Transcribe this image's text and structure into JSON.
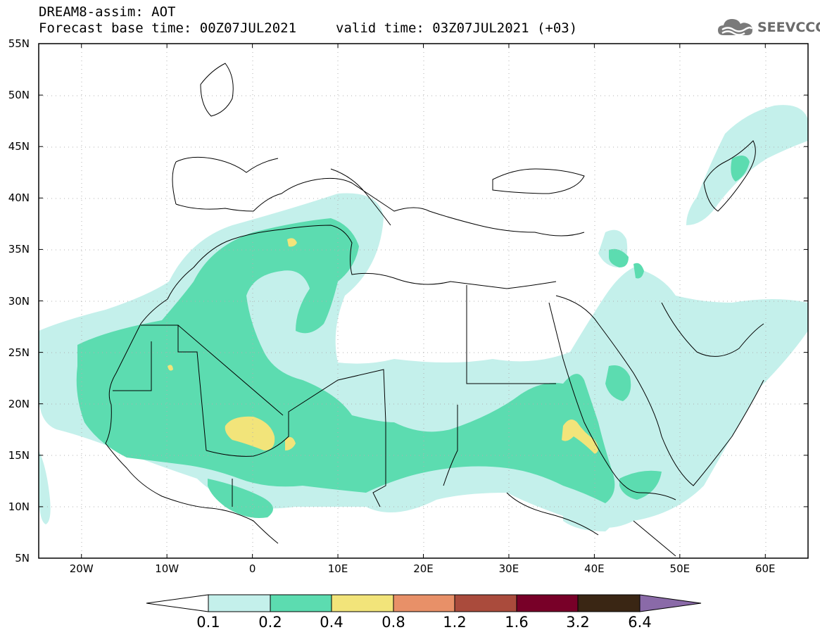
{
  "header": {
    "title": "DREAM8-assim: AOT",
    "base_time": "Forecast base time: 00Z07JUL2021",
    "valid_time": "valid time: 03Z07JUL2021 (+03)"
  },
  "logo": {
    "icon": "cloud-icon",
    "text": "SEEVCCC"
  },
  "map": {
    "lat_ticks": [
      {
        "lat": 55,
        "label": "55N"
      },
      {
        "lat": 50,
        "label": "50N"
      },
      {
        "lat": 45,
        "label": "45N"
      },
      {
        "lat": 40,
        "label": "40N"
      },
      {
        "lat": 35,
        "label": "35N"
      },
      {
        "lat": 30,
        "label": "30N"
      },
      {
        "lat": 25,
        "label": "25N"
      },
      {
        "lat": 20,
        "label": "20N"
      },
      {
        "lat": 15,
        "label": "15N"
      },
      {
        "lat": 10,
        "label": "10N"
      },
      {
        "lat": 5,
        "label": "5N"
      }
    ],
    "lon_ticks": [
      {
        "lon": -20,
        "label": "20W"
      },
      {
        "lon": -10,
        "label": "10W"
      },
      {
        "lon": 0,
        "label": "0"
      },
      {
        "lon": 10,
        "label": "10E"
      },
      {
        "lon": 20,
        "label": "20E"
      },
      {
        "lon": 30,
        "label": "30E"
      },
      {
        "lon": 40,
        "label": "40E"
      },
      {
        "lon": 50,
        "label": "50E"
      },
      {
        "lon": 60,
        "label": "60E"
      }
    ],
    "extent": {
      "lon_min": -25,
      "lon_max": 65,
      "lat_min": 5,
      "lat_max": 55
    }
  },
  "colorbar": {
    "labels": [
      "0.1",
      "0.2",
      "0.4",
      "0.8",
      "1.2",
      "1.6",
      "3.2",
      "6.4"
    ],
    "colors": [
      "#ffffff",
      "#c4f0eb",
      "#5cdcb0",
      "#f2e47a",
      "#e89068",
      "#aa4b3c",
      "#780028",
      "#3a2614",
      "#8a6aa8"
    ]
  }
}
